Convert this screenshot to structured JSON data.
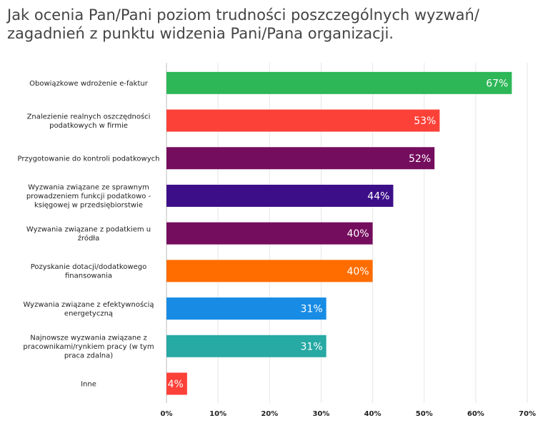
{
  "title": "Jak ocenia Pan/Pani poziom trudności poszczególnych wyzwań/ zagadnień z punktu widzenia Pani/Pana organizacji.",
  "chart_data": {
    "type": "bar",
    "orientation": "horizontal",
    "title": "Jak ocenia Pan/Pani poziom trudności poszczególnych wyzwań/ zagadnień z punktu widzenia Pani/Pana organizacji.",
    "categories": [
      [
        "Obowiązkowe wdrożenie e-faktur"
      ],
      [
        "Znalezienie realnych oszczędności",
        "podatkowych w firmie"
      ],
      [
        "Przygotowanie do kontroli podatkowych"
      ],
      [
        "Wyzwania związane ze sprawnym",
        "prowadzeniem funkcji podatkowo -",
        "księgowej w przedsiębiorstwie"
      ],
      [
        "Wyzwania związane z podatkiem u",
        "źródła"
      ],
      [
        "Pozyskanie dotacji/dodatkowego",
        "finansowania"
      ],
      [
        "Wyzwania związane z efektywnością",
        "energetyczną"
      ],
      [
        "Najnowsze wyzwania związane z",
        "pracownikami/rynkiem pracy (w tym",
        "praca zdalna)"
      ],
      [
        "Inne"
      ]
    ],
    "values": [
      67,
      53,
      52,
      44,
      40,
      40,
      31,
      31,
      4
    ],
    "value_labels": [
      "67%",
      "53%",
      "52%",
      "44%",
      "40%",
      "40%",
      "31%",
      "31%",
      "4%"
    ],
    "colors": [
      "#2db757",
      "#fc4138",
      "#750d5e",
      "#3c0f89",
      "#750d5e",
      "#ff6d00",
      "#188ce5",
      "#27a9a4",
      "#fc4138"
    ],
    "xlim": [
      0,
      70
    ],
    "xticks": [
      0,
      10,
      20,
      30,
      40,
      50,
      60,
      70
    ],
    "xtick_labels": [
      "0%",
      "10%",
      "20%",
      "30%",
      "40%",
      "50%",
      "60%",
      "70%"
    ],
    "grid": true,
    "xlabel": "",
    "ylabel": ""
  }
}
